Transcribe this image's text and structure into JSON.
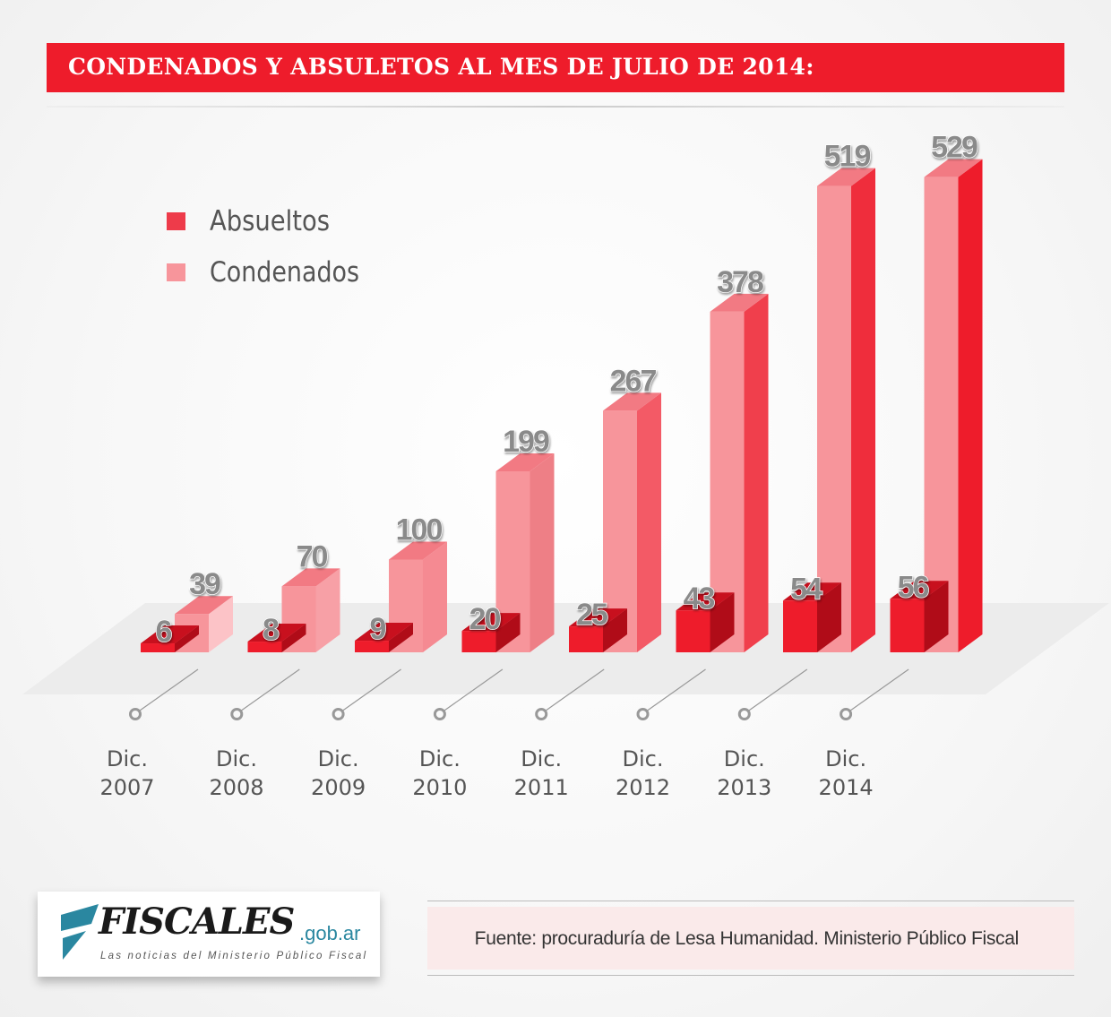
{
  "title": "CONDENADOS Y ABSULETOS AL MES DE JULIO DE 2014:",
  "chart_data": {
    "type": "bar",
    "title": "CONDENADOS Y ABSULETOS AL MES DE JULIO DE 2014:",
    "categories": [
      "Dic. 2007",
      "Dic. 2008",
      "Dic. 2009",
      "Dic. 2010",
      "Dic. 2011",
      "Dic. 2012",
      "Dic. 2013",
      "Dic. 2014"
    ],
    "category_lines": [
      [
        "Dic.",
        "2007"
      ],
      [
        "Dic.",
        "2008"
      ],
      [
        "Dic.",
        "2009"
      ],
      [
        "Dic.",
        "2010"
      ],
      [
        "Dic.",
        "2011"
      ],
      [
        "Dic.",
        "2012"
      ],
      [
        "Dic.",
        "2013"
      ],
      [
        "Dic.",
        "2014"
      ]
    ],
    "series": [
      {
        "name": "Absueltos",
        "color": "#ee1c2b",
        "values": [
          6,
          8,
          9,
          20,
          25,
          43,
          54,
          56
        ]
      },
      {
        "name": "Condenados",
        "color": "#f7959b",
        "values": [
          39,
          70,
          100,
          199,
          267,
          378,
          519,
          529
        ]
      }
    ],
    "legend_position": "top-left",
    "xlabel": "",
    "ylabel": "",
    "ylim": [
      0,
      529
    ]
  },
  "logo": {
    "name": "FISCALES",
    "domain": ".gob.ar",
    "tagline": "Las noticias del Ministerio Público Fiscal"
  },
  "source": "Fuente: procuraduría de Lesa Humanidad. Ministerio Público Fiscal"
}
